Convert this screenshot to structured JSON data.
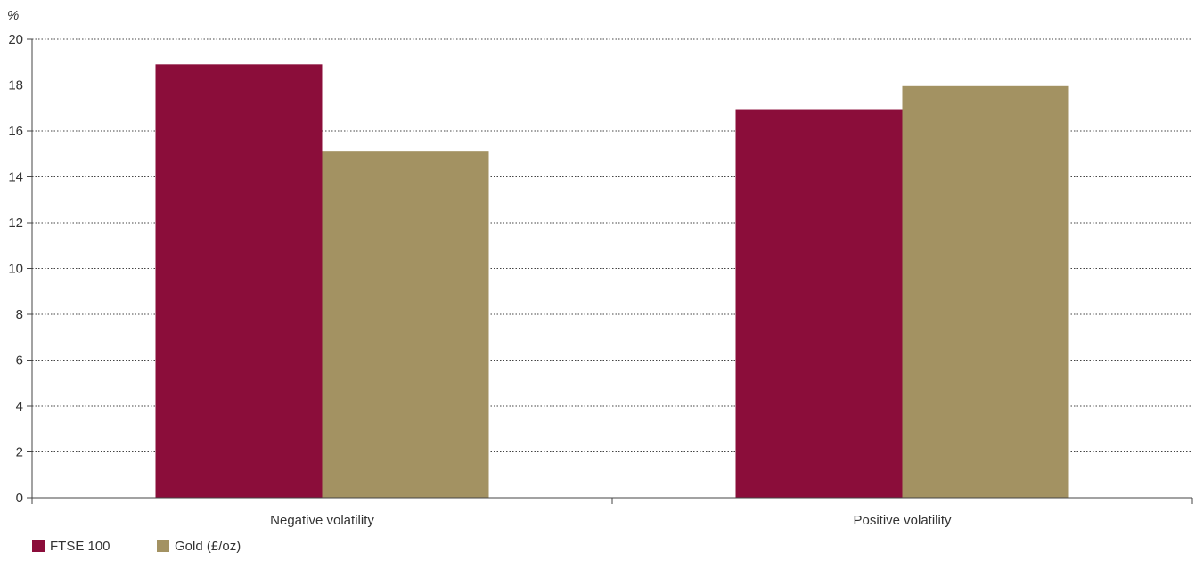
{
  "chart_data": {
    "type": "bar",
    "ylabel": "%",
    "ylim": [
      0,
      20
    ],
    "yticks": [
      0,
      2,
      4,
      6,
      8,
      10,
      12,
      14,
      16,
      18,
      20
    ],
    "categories": [
      "Negative volatility",
      "Positive volatility"
    ],
    "series": [
      {
        "name": "FTSE 100",
        "color": "#8B0D3A",
        "values": [
          18.9,
          16.95
        ]
      },
      {
        "name": "Gold (£/oz)",
        "color": "#A39262",
        "values": [
          15.1,
          17.95
        ]
      }
    ],
    "grid": true,
    "legend_position": "bottom-left"
  }
}
